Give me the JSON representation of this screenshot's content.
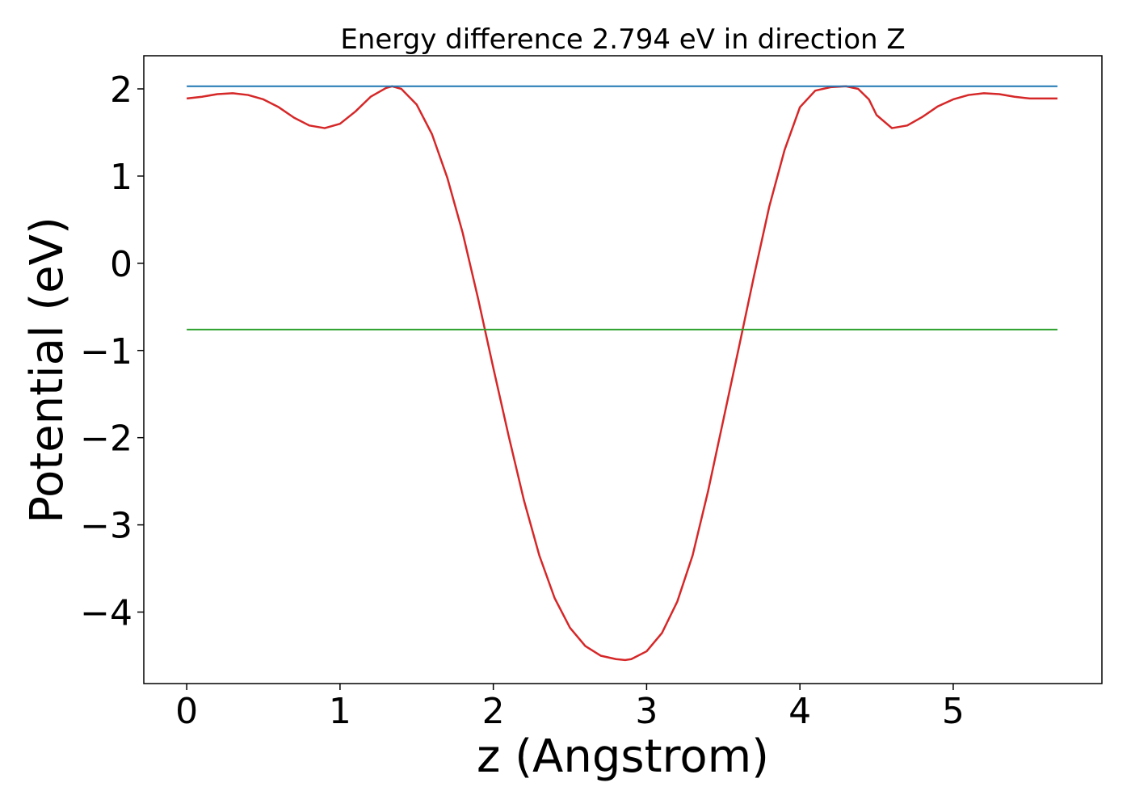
{
  "chart_data": {
    "type": "line",
    "title": "Energy difference 2.794 eV in direction Z",
    "xlabel": "z (Angstrom)",
    "ylabel": "Potential (eV)",
    "xlim": [
      -0.28,
      5.97
    ],
    "ylim": [
      -4.82,
      2.38
    ],
    "x_ticks": [
      0,
      1,
      2,
      3,
      4,
      5
    ],
    "x_tick_labels": [
      "0",
      "1",
      "2",
      "3",
      "4",
      "5"
    ],
    "y_ticks": [
      2,
      1,
      0,
      -1,
      -2,
      -3,
      -4
    ],
    "y_tick_labels": [
      "2",
      "1",
      "0",
      "−1",
      "−2",
      "−3",
      "−4"
    ],
    "grid": false,
    "series": [
      {
        "color": "#d62728",
        "x": [
          0.0,
          0.1,
          0.2,
          0.3,
          0.4,
          0.5,
          0.6,
          0.7,
          0.8,
          0.9,
          1.0,
          1.1,
          1.2,
          1.3,
          1.34,
          1.4,
          1.5,
          1.6,
          1.7,
          1.8,
          1.9,
          2.0,
          2.1,
          2.2,
          2.3,
          2.4,
          2.5,
          2.6,
          2.7,
          2.8,
          2.86,
          2.9,
          3.0,
          3.1,
          3.2,
          3.3,
          3.4,
          3.5,
          3.6,
          3.7,
          3.8,
          3.9,
          4.0,
          4.1,
          4.2,
          4.3,
          4.38,
          4.45,
          4.5,
          4.6,
          4.7,
          4.8,
          4.9,
          5.0,
          5.1,
          5.2,
          5.3,
          5.4,
          5.5,
          5.6,
          5.68
        ],
        "y": [
          1.89,
          1.91,
          1.94,
          1.95,
          1.93,
          1.88,
          1.79,
          1.67,
          1.58,
          1.55,
          1.6,
          1.74,
          1.91,
          2.01,
          2.03,
          2.0,
          1.82,
          1.48,
          0.98,
          0.35,
          -0.4,
          -1.2,
          -1.98,
          -2.72,
          -3.35,
          -3.84,
          -4.18,
          -4.39,
          -4.5,
          -4.54,
          -4.55,
          -4.54,
          -4.45,
          -4.24,
          -3.88,
          -3.35,
          -2.62,
          -1.8,
          -0.98,
          -0.15,
          0.65,
          1.3,
          1.79,
          1.98,
          2.02,
          2.03,
          2.0,
          1.88,
          1.7,
          1.55,
          1.58,
          1.68,
          1.8,
          1.88,
          1.93,
          1.95,
          1.94,
          1.91,
          1.89,
          1.89,
          1.89
        ]
      },
      {
        "color": "#1f77b4",
        "x": [
          0.0,
          5.68
        ],
        "y": [
          2.03,
          2.03
        ]
      },
      {
        "color": "#2ca02c",
        "x": [
          0.0,
          5.68
        ],
        "y": [
          -0.76,
          -0.76
        ]
      }
    ]
  }
}
